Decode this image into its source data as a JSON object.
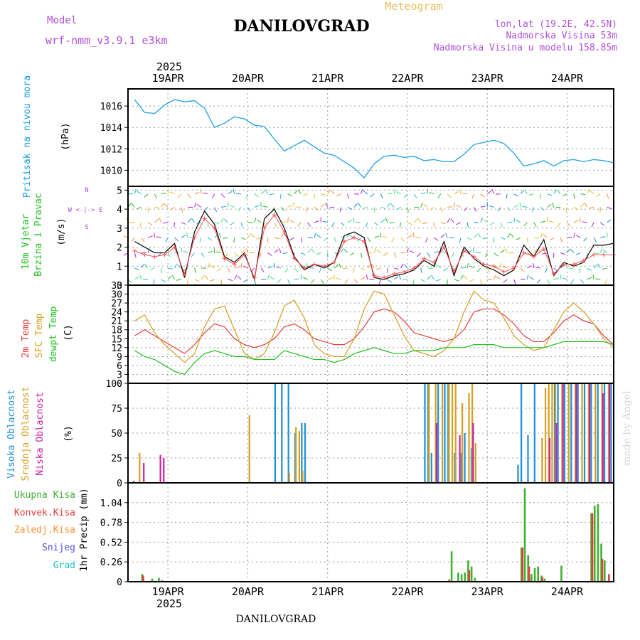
{
  "header": {
    "title": "DANILOVGRAD",
    "meteogram_label": "Meteogram",
    "model_label": "Model",
    "model_name": "wrf-nmm_v3.9.1 e3km",
    "location": "lon,lat (19.2E, 42.5N)",
    "elevation": "Nadmorska Visina 53m",
    "model_elevation": "Nadmorska Visina u modelu 158.85m",
    "watermark": "made by Angel",
    "footer_title": "DANILOVGRAD"
  },
  "colors": {
    "pressure": "#1ea0e6",
    "wind_obs": "#000000",
    "wind_model": "#ff5050",
    "t2m": "#e83c3c",
    "sfc": "#d4a020",
    "dew": "#20c020",
    "cloud_high": "#1a90d8",
    "cloud_mid": "#d4a020",
    "cloud_low": "#d020a0",
    "precip_total": "#40b030",
    "precip_conv": "#e83c3c",
    "precip_frozen": "#ff9030",
    "precip_snow": "#5050e0",
    "precip_grad": "#20c0c0",
    "label_magenta": "#b050d8",
    "header_gold": "#e8c060"
  },
  "chart_data": [
    {
      "type": "line",
      "title": "Pritisak na nivou mora",
      "ylabel": "(hPa)",
      "ylim": [
        1008.5,
        1017.6
      ],
      "yticks": [
        1010,
        1012,
        1014,
        1016
      ],
      "x_hours": [
        0,
        3,
        6,
        9,
        12,
        15,
        18,
        21,
        24,
        27,
        30,
        33,
        36,
        39,
        42,
        45,
        48,
        51,
        54,
        57,
        60,
        63,
        66,
        69,
        72,
        75,
        78,
        81,
        84,
        87,
        90,
        93,
        96,
        99,
        102,
        105,
        108,
        111,
        114,
        117,
        120,
        123,
        126,
        129,
        132,
        135,
        138,
        141,
        144
      ],
      "series": [
        {
          "name": "Pritisak",
          "values": [
            1016.6,
            1015.4,
            1015.3,
            1016.1,
            1016.6,
            1016.4,
            1016.5,
            1015.8,
            1014.0,
            1014.4,
            1015.0,
            1014.8,
            1014.2,
            1014.1,
            1012.9,
            1011.8,
            1012.3,
            1012.8,
            1012.2,
            1011.6,
            1011.4,
            1010.8,
            1010.2,
            1009.3,
            1010.6,
            1011.3,
            1011.4,
            1011.2,
            1011.3,
            1010.9,
            1011.0,
            1010.8,
            1010.8,
            1011.5,
            1012.4,
            1012.6,
            1012.8,
            1012.5,
            1011.6,
            1010.4,
            1010.6,
            1010.9,
            1010.4,
            1010.9,
            1011.0,
            1010.8,
            1011.0,
            1010.9,
            1010.7
          ]
        }
      ]
    },
    {
      "type": "line",
      "title": "10m Vjetar",
      "subtitle": "Brzina i Pravac",
      "ylabel": "(m/s)",
      "compass_label": "W <-|-> E",
      "compass_north": "N",
      "compass_south": "S",
      "ylim": [
        0,
        5.2
      ],
      "yticks": [
        0,
        1,
        2,
        3,
        4,
        5
      ],
      "x_hours": [
        0,
        3,
        6,
        9,
        12,
        15,
        18,
        21,
        24,
        27,
        30,
        33,
        36,
        39,
        42,
        45,
        48,
        51,
        54,
        57,
        60,
        63,
        66,
        69,
        72,
        75,
        78,
        81,
        84,
        87,
        90,
        93,
        96,
        99,
        102,
        105,
        108,
        111,
        114,
        117,
        120,
        123,
        126,
        129,
        132,
        135,
        138,
        141,
        144
      ],
      "series": [
        {
          "name": "Brzina (crna)",
          "values": [
            2.3,
            2.0,
            1.7,
            1.7,
            2.2,
            0.4,
            2.8,
            3.9,
            3.2,
            1.5,
            1.2,
            1.7,
            0.3,
            3.5,
            4.0,
            3.0,
            1.5,
            0.8,
            1.1,
            0.9,
            1.2,
            2.6,
            2.8,
            2.5,
            0.4,
            0.3,
            0.5,
            0.6,
            0.8,
            1.3,
            1.0,
            2.3,
            0.5,
            2.0,
            1.4,
            1.0,
            0.8,
            0.5,
            0.8,
            2.1,
            1.5,
            2.4,
            0.5,
            1.2,
            1.0,
            1.2,
            2.1,
            2.1,
            2.2
          ]
        },
        {
          "name": "Brzina (crvena)",
          "values": [
            1.8,
            1.6,
            1.5,
            1.6,
            2.0,
            0.6,
            2.5,
            3.5,
            3.0,
            1.4,
            1.1,
            1.6,
            0.4,
            3.0,
            3.7,
            2.8,
            1.4,
            0.9,
            1.1,
            1.0,
            1.2,
            2.3,
            2.5,
            2.3,
            0.5,
            0.4,
            0.6,
            0.7,
            0.9,
            1.4,
            1.2,
            2.0,
            0.7,
            1.8,
            1.5,
            1.1,
            1.0,
            0.7,
            0.9,
            1.7,
            1.5,
            1.9,
            0.6,
            1.1,
            1.1,
            1.3,
            1.6,
            1.6,
            1.6
          ]
        }
      ],
      "barb_levels": [
        4.8,
        4.1,
        3.3,
        2.5,
        1.7,
        0.9,
        0.3
      ]
    },
    {
      "type": "line",
      "title": "2m Temp",
      "subtitle": "SFC Temp",
      "subtitle2": "dewpt Temp",
      "ylabel": "(C)",
      "ylim": [
        0,
        33
      ],
      "yticks": [
        0,
        3,
        6,
        9,
        12,
        15,
        18,
        21,
        24,
        27,
        30,
        33
      ],
      "x_hours": [
        0,
        3,
        6,
        9,
        12,
        15,
        18,
        21,
        24,
        27,
        30,
        33,
        36,
        39,
        42,
        45,
        48,
        51,
        54,
        57,
        60,
        63,
        66,
        69,
        72,
        75,
        78,
        81,
        84,
        87,
        90,
        93,
        96,
        99,
        102,
        105,
        108,
        111,
        114,
        117,
        120,
        123,
        126,
        129,
        132,
        135,
        138,
        141,
        144
      ],
      "series": [
        {
          "name": "2m Temp",
          "values": [
            16,
            18,
            16,
            14,
            12,
            10,
            13,
            17,
            20,
            19,
            15,
            13,
            12,
            13,
            15,
            19,
            20,
            18,
            15,
            14,
            13,
            13,
            15,
            19,
            24,
            25,
            24,
            21,
            17,
            16,
            15,
            14,
            15,
            18,
            24,
            25,
            25,
            23,
            20,
            16,
            14,
            14,
            17,
            21,
            23,
            21,
            20,
            16,
            13
          ]
        },
        {
          "name": "SFC Temp",
          "values": [
            21,
            23,
            17,
            13,
            10,
            7,
            10,
            19,
            25,
            26,
            18,
            10,
            8,
            10,
            17,
            26,
            28,
            22,
            13,
            10,
            9,
            9,
            15,
            25,
            31,
            30,
            23,
            16,
            11,
            10,
            9,
            11,
            15,
            24,
            31,
            28,
            27,
            22,
            16,
            13,
            11,
            12,
            18,
            24,
            27,
            24,
            20,
            15,
            12
          ]
        },
        {
          "name": "dewpt Temp",
          "values": [
            11,
            9,
            8,
            6,
            4,
            3,
            7,
            10,
            11,
            10,
            9,
            9,
            8,
            8,
            8,
            11,
            10,
            9,
            8,
            8,
            7,
            8,
            10,
            11,
            12,
            11,
            10,
            10,
            11,
            11,
            11,
            12,
            12,
            12,
            13,
            13,
            13,
            12,
            12,
            12,
            12,
            12,
            13,
            14,
            14,
            14,
            14,
            14,
            13
          ]
        }
      ]
    },
    {
      "type": "bar",
      "title": "Visoka Oblacnost",
      "subtitle": "Srednja Oblacnost",
      "subtitle2": "Niska Oblacnost",
      "ylabel": "(%)",
      "ylim": [
        0,
        100
      ],
      "yticks": [
        0,
        25,
        50,
        75,
        100
      ],
      "series": [
        {
          "name": "Visoka",
          "x_hours": [
            44,
            46,
            48,
            50,
            52,
            53,
            89,
            90,
            91,
            93,
            95,
            96,
            98,
            100,
            101,
            103,
            117,
            118,
            120,
            122,
            128,
            129,
            131,
            133,
            135,
            137,
            139,
            141,
            143,
            145
          ],
          "values": [
            100,
            100,
            100,
            50,
            60,
            60,
            100,
            100,
            30,
            100,
            100,
            100,
            30,
            30,
            50,
            35,
            18,
            100,
            48,
            100,
            100,
            100,
            100,
            100,
            100,
            100,
            100,
            100,
            100,
            100
          ]
        },
        {
          "name": "Srednja",
          "x_hours": [
            3,
            36,
            48,
            50,
            51,
            52,
            90,
            92,
            94,
            96,
            97,
            98,
            100,
            102,
            103,
            104,
            124,
            125,
            126,
            127,
            128,
            130,
            132,
            134,
            136,
            138,
            140,
            142,
            144
          ],
          "values": [
            30,
            68,
            10,
            56,
            52,
            12,
            100,
            100,
            100,
            100,
            100,
            100,
            80,
            90,
            100,
            40,
            45,
            95,
            100,
            100,
            100,
            100,
            100,
            100,
            100,
            100,
            100,
            100,
            100
          ]
        },
        {
          "name": "Niska",
          "x_hours": [
            1,
            4,
            9,
            10,
            92,
            99,
            103,
            126,
            128,
            130,
            134,
            138,
            142,
            144
          ],
          "values": [
            2,
            20,
            28,
            25,
            60,
            48,
            60,
            45,
            60,
            100,
            100,
            100,
            90,
            100
          ]
        }
      ]
    },
    {
      "type": "bar",
      "title": "Ukupna Kisa",
      "legend": [
        "Ukupna Kisa",
        "Konvek.Kisa",
        "Zaledj.Kisa",
        "Snijeg",
        "Grad"
      ],
      "ylabel": "1hr Precip (mm)",
      "ylim": [
        0,
        1.3
      ],
      "yticks": [
        0,
        0.26,
        0.52,
        0.78,
        1.04
      ],
      "ytick_labels": [
        "0",
        "0.26",
        "0.52",
        "0.78",
        "1.04"
      ],
      "series": [
        {
          "name": "Ukupna Kisa",
          "x_hours": [
            4,
            7,
            9,
            10,
            97,
            99,
            100,
            101,
            102,
            103,
            104,
            118,
            119,
            120,
            121,
            122,
            123,
            124,
            125,
            130,
            139,
            140,
            141,
            142,
            143
          ],
          "values": [
            0.1,
            0.04,
            0.05,
            0.02,
            0.4,
            0.12,
            0.1,
            0.12,
            0.28,
            0.2,
            0.05,
            0.45,
            1.23,
            0.35,
            0.1,
            0.18,
            0.2,
            0.08,
            0.04,
            0.21,
            0.9,
            1.0,
            1.02,
            0.5,
            0.28
          ]
        },
        {
          "name": "Konvek.Kisa",
          "x_hours": [
            4,
            96,
            102,
            118,
            120,
            124,
            139,
            142,
            144
          ],
          "values": [
            0.08,
            0.03,
            0.15,
            0.45,
            0.2,
            0.06,
            0.9,
            0.3,
            0.1
          ]
        }
      ]
    }
  ],
  "xaxis": {
    "year_top": "2025",
    "year_bottom": "2025",
    "day_labels": [
      "19APR",
      "20APR",
      "21APR",
      "22APR",
      "23APR",
      "24APR"
    ],
    "start_offset_hours": -12,
    "total_hours": 146
  }
}
